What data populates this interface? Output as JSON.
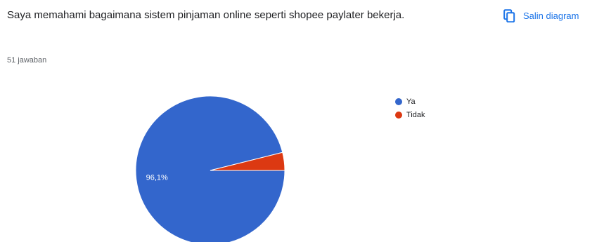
{
  "question": {
    "title": "Saya memahami bagaimana sistem pinjaman online seperti shopee paylater bekerja.",
    "response_count": "51 jawaban"
  },
  "copy_button": {
    "label": "Salin diagram",
    "icon": "copy-icon",
    "color": "#1a73e8"
  },
  "chart_data": {
    "type": "pie",
    "labels": [
      "Ya",
      "Tidak"
    ],
    "values": [
      96.1,
      3.9
    ],
    "colors": [
      "#3366cc",
      "#dc3912"
    ],
    "data_labels": [
      "96,1%",
      ""
    ],
    "legend_position": "right"
  }
}
